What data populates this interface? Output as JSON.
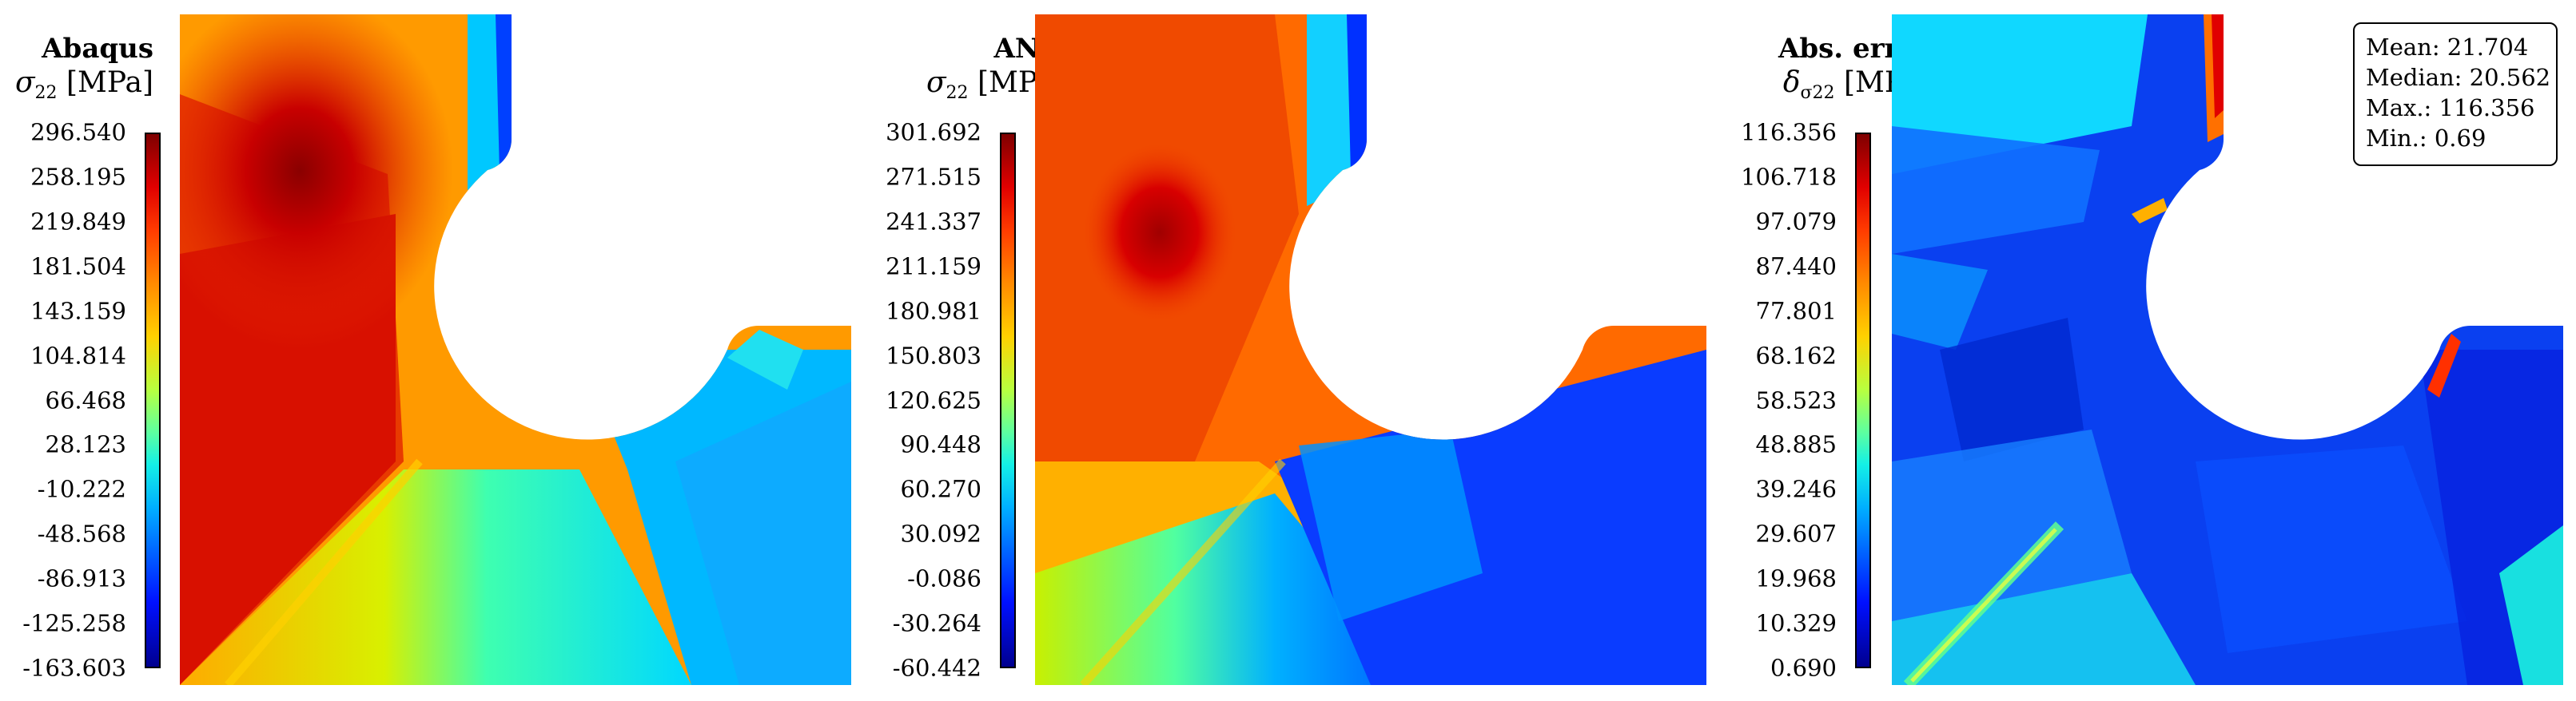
{
  "panels": [
    {
      "title": "Abaqus",
      "quantity_symbol": "σ",
      "quantity_subscript": "22",
      "unit": "[MPa]",
      "colorbar_ticks": [
        "296.540",
        "258.195",
        "219.849",
        "181.504",
        "143.159",
        "104.814",
        "66.468",
        "28.123",
        "-10.222",
        "-48.568",
        "-86.913",
        "-125.258",
        "-163.603"
      ]
    },
    {
      "title": "ANN",
      "quantity_symbol": "σ",
      "quantity_subscript": "22",
      "unit": "[MPa]",
      "colorbar_ticks": [
        "301.692",
        "271.515",
        "241.337",
        "211.159",
        "180.981",
        "150.803",
        "120.625",
        "90.448",
        "60.270",
        "30.092",
        "-0.086",
        "-30.264",
        "-60.442"
      ]
    },
    {
      "title": "Abs. error",
      "quantity_symbol": "δ",
      "quantity_subscript": "σ22",
      "unit": "[MPa]",
      "colorbar_ticks": [
        "116.356",
        "106.718",
        "97.079",
        "87.440",
        "77.801",
        "68.162",
        "58.523",
        "48.885",
        "39.246",
        "29.607",
        "19.968",
        "10.329",
        "0.690"
      ]
    }
  ],
  "stats": {
    "mean": "Mean: 21.704",
    "median": "Median: 20.562",
    "max": "Max.: 116.356",
    "min": "Min.: 0.69"
  },
  "colormap": "jet"
}
